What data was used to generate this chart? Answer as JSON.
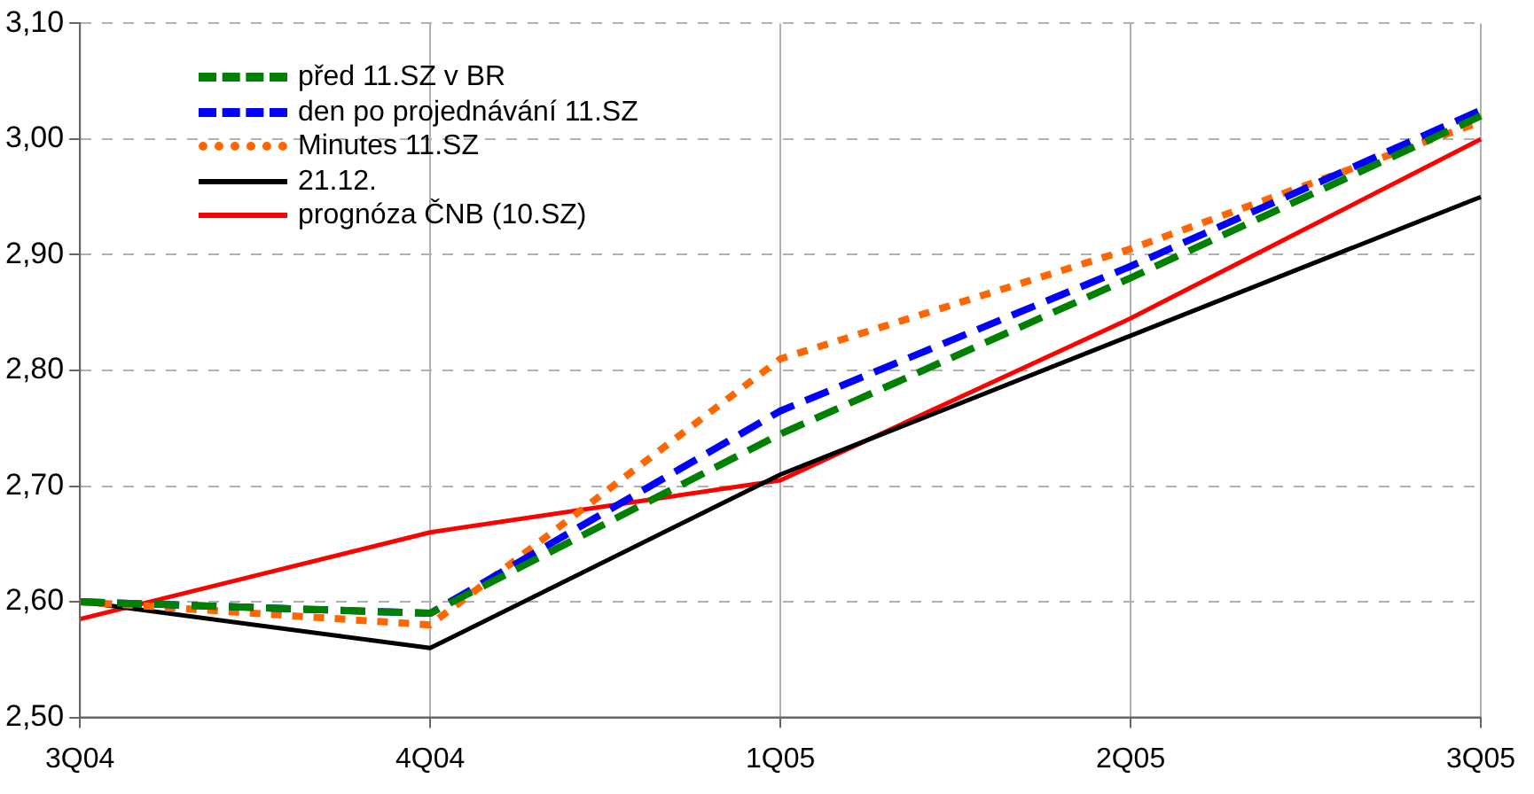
{
  "chart_data": {
    "type": "line",
    "categories": [
      "3Q04",
      "4Q04",
      "1Q05",
      "2Q05",
      "3Q05"
    ],
    "series": [
      {
        "name": "před 11.SZ v BR",
        "color": "#008000",
        "line_style": "dashed",
        "values": [
          2.6,
          2.59,
          2.745,
          2.88,
          3.02
        ]
      },
      {
        "name": "den po projednávání 11.SZ",
        "color": "#0000ff",
        "line_style": "dashed",
        "values": [
          2.6,
          2.59,
          2.765,
          2.89,
          3.025
        ]
      },
      {
        "name": "Minutes 11.SZ",
        "color": "#ff6600",
        "line_style": "dotted",
        "values": [
          2.6,
          2.58,
          2.81,
          2.905,
          3.015
        ]
      },
      {
        "name": "21.12.",
        "color": "#000000",
        "line_style": "solid",
        "values": [
          2.6,
          2.56,
          2.71,
          2.83,
          2.95
        ]
      },
      {
        "name": "prognóza ČNB (10.SZ)",
        "color": "#ff0000",
        "line_style": "solid",
        "values": [
          2.585,
          2.66,
          2.705,
          2.845,
          3.0
        ]
      }
    ],
    "ylim": [
      2.5,
      3.1
    ],
    "yticks": [
      {
        "value": 2.5,
        "label": "2,50"
      },
      {
        "value": 2.6,
        "label": "2,60"
      },
      {
        "value": 2.7,
        "label": "2,70"
      },
      {
        "value": 2.8,
        "label": "2,80"
      },
      {
        "value": 2.9,
        "label": "2,90"
      },
      {
        "value": 3.0,
        "label": "3,00"
      },
      {
        "value": 3.1,
        "label": "3,10"
      }
    ],
    "grid": true,
    "legend": "top left",
    "marker": "none"
  }
}
